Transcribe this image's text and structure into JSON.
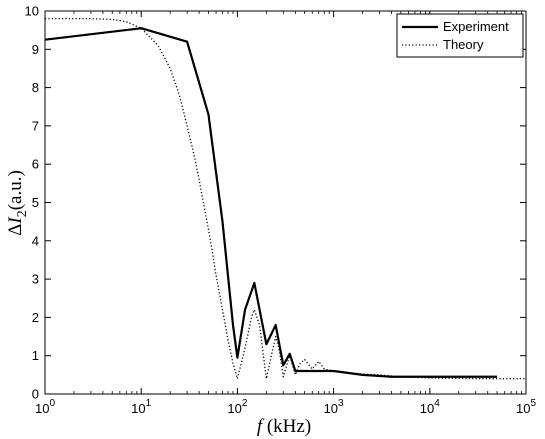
{
  "chart_data": {
    "type": "line",
    "xscale": "log",
    "xlim": [
      1,
      100000
    ],
    "ylim": [
      0,
      10
    ],
    "grid": false,
    "legend_position": "top-right",
    "xlabel": {
      "italic": "f",
      "rest": " (kHz)"
    },
    "ylabel": {
      "delta": "Δ",
      "italic": "I",
      "sub": "2",
      "rest": "(a.u.)"
    },
    "x_ticks": [
      {
        "base": "10",
        "exp": "0"
      },
      {
        "base": "10",
        "exp": "1"
      },
      {
        "base": "10",
        "exp": "2"
      },
      {
        "base": "10",
        "exp": "3"
      },
      {
        "base": "10",
        "exp": "4"
      },
      {
        "base": "10",
        "exp": "5"
      }
    ],
    "y_ticks": [
      "0",
      "1",
      "2",
      "3",
      "4",
      "5",
      "6",
      "7",
      "8",
      "9",
      "10"
    ],
    "series": [
      {
        "name": "Experiment",
        "style": "solid",
        "color": "#000000",
        "x": [
          1,
          10,
          30,
          50,
          70,
          90,
          100,
          120,
          150,
          200,
          250,
          300,
          350,
          400,
          600,
          1000,
          2000,
          4000,
          10000,
          50000
        ],
        "y": [
          9.25,
          9.55,
          9.2,
          7.3,
          4.5,
          1.8,
          0.95,
          2.2,
          2.9,
          1.3,
          1.8,
          0.75,
          1.05,
          0.6,
          0.6,
          0.6,
          0.5,
          0.45,
          0.45,
          0.45
        ]
      },
      {
        "name": "Theory",
        "style": "dotted",
        "color": "#000000",
        "x": [
          1,
          2,
          3,
          5,
          7,
          10,
          15,
          20,
          25,
          30,
          35,
          40,
          45,
          50,
          55,
          60,
          70,
          80,
          90,
          100,
          120,
          140,
          150,
          170,
          200,
          230,
          250,
          270,
          300,
          330,
          350,
          400,
          450,
          500,
          600,
          700,
          800,
          1000,
          1500,
          2000,
          3000,
          5000,
          10000,
          30000,
          100000
        ],
        "y": [
          9.8,
          9.8,
          9.8,
          9.78,
          9.72,
          9.55,
          9.1,
          8.5,
          7.8,
          7.0,
          6.3,
          5.6,
          4.9,
          4.3,
          3.7,
          3.1,
          2.2,
          1.4,
          0.8,
          0.4,
          1.2,
          2.0,
          2.2,
          1.8,
          0.4,
          1.1,
          1.5,
          1.2,
          0.45,
          0.8,
          1.0,
          0.5,
          0.8,
          0.9,
          0.65,
          0.85,
          0.65,
          0.6,
          0.55,
          0.52,
          0.5,
          0.45,
          0.42,
          0.4,
          0.4
        ]
      }
    ]
  }
}
